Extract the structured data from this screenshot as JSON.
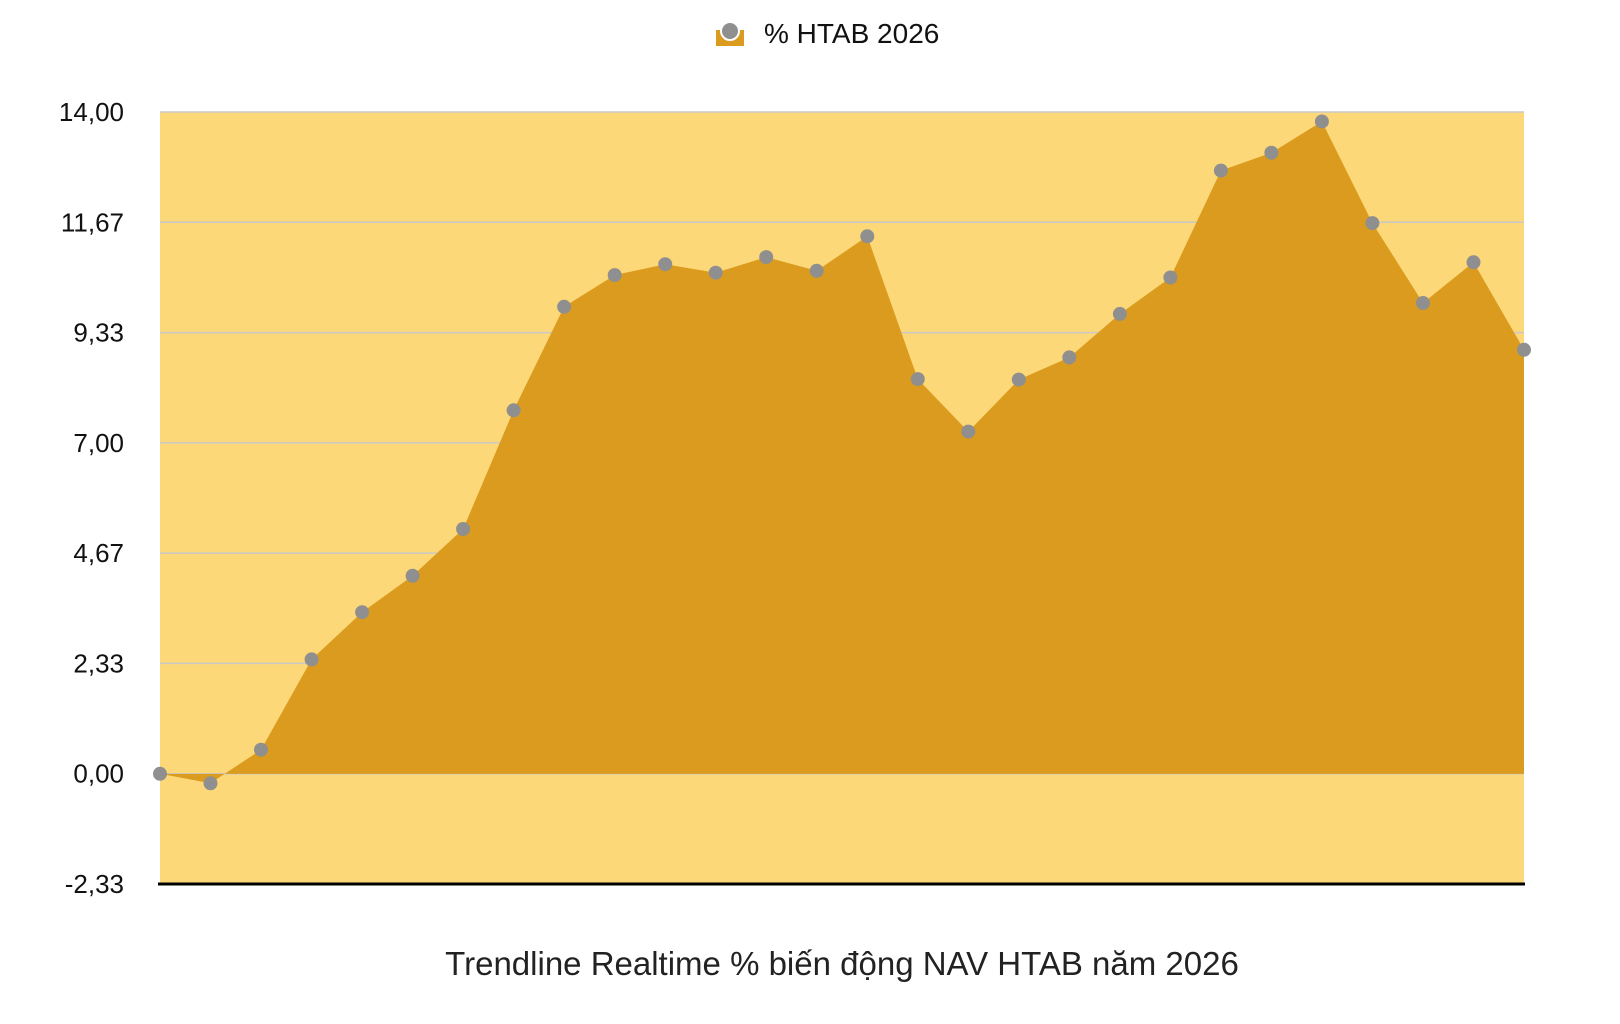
{
  "chart_data": {
    "type": "area",
    "series": [
      {
        "name": "% HTAB 2026",
        "values": [
          0.0,
          -0.2,
          0.51,
          2.42,
          3.42,
          4.19,
          5.18,
          7.69,
          9.88,
          10.55,
          10.78,
          10.6,
          10.93,
          10.64,
          11.37,
          8.35,
          7.24,
          8.34,
          8.81,
          9.73,
          10.5,
          12.76,
          13.14,
          13.8,
          11.65,
          9.96,
          10.82,
          8.97
        ],
        "color": "#db9b1e",
        "marker_color": "#8f8f8f"
      }
    ],
    "yticks": [
      "14,00",
      "11,67",
      "9,33",
      "7,00",
      "4,67",
      "2,33",
      "0,00",
      "-2,33"
    ],
    "ylim": [
      -2.33,
      14.0
    ],
    "grid": true,
    "legend_position": "top-center",
    "background_color": "#fdd879",
    "caption": "Trendline Realtime % biến động NAV HTAB năm 2026"
  }
}
